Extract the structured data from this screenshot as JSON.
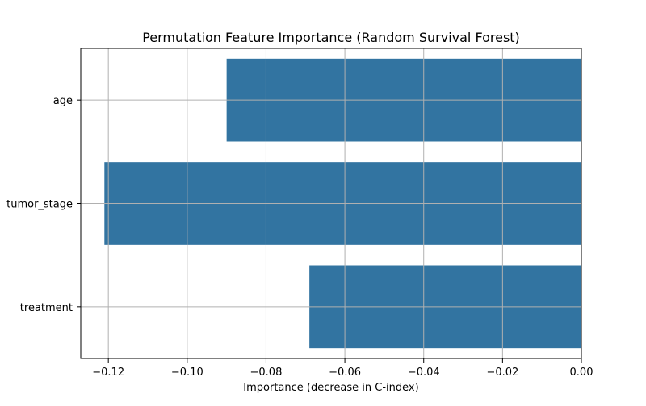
{
  "chart_data": {
    "type": "bar",
    "orientation": "horizontal",
    "title": "Permutation Feature Importance (Random Survival Forest)",
    "xlabel": "Importance (decrease in C-index)",
    "ylabel": "",
    "categories": [
      "age",
      "tumor_stage",
      "treatment"
    ],
    "values": [
      -0.09,
      -0.121,
      -0.069
    ],
    "xlim": [
      -0.127,
      0.0
    ],
    "xticks": [
      -0.12,
      -0.1,
      -0.08,
      -0.06,
      -0.04,
      -0.02,
      0.0
    ],
    "xtick_labels": [
      "−0.12",
      "−0.10",
      "−0.08",
      "−0.06",
      "−0.04",
      "−0.02",
      "0.00"
    ],
    "grid": true,
    "legend": "none",
    "bar_color": "#3274a1",
    "grid_color": "#b0b0b0"
  }
}
